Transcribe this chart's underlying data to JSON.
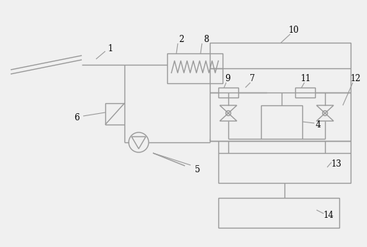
{
  "bg_color": "#f0f0f0",
  "line_color": "#999999",
  "line_width": 1.0,
  "font_size": 8.5,
  "fig_w": 5.16,
  "fig_h": 3.47,
  "dpi": 100
}
